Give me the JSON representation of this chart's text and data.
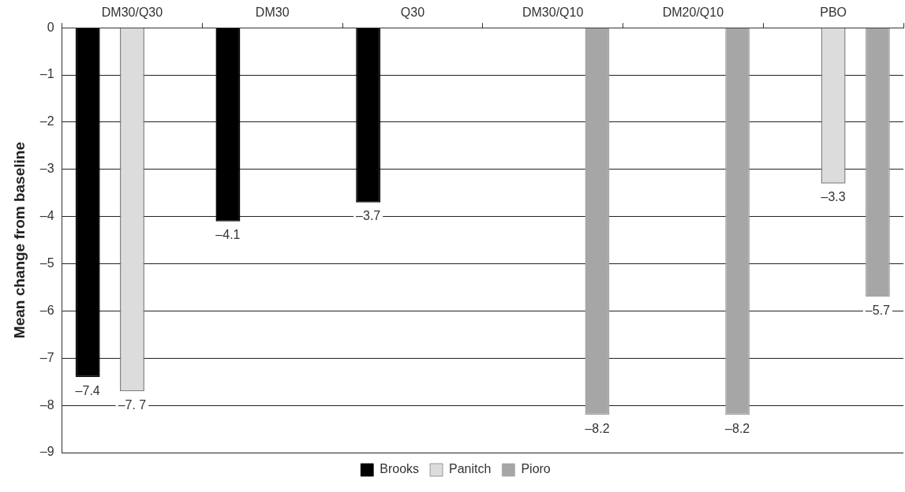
{
  "chart_data": {
    "type": "bar",
    "ylabel": "Mean change from baseline",
    "categories": [
      "DM30/Q30",
      "DM30",
      "Q30",
      "DM30/Q10",
      "DM20/Q10",
      "PBO"
    ],
    "series": [
      {
        "name": "Brooks",
        "color": "#000000",
        "values": [
          -7.4,
          -4.1,
          -3.7,
          null,
          null,
          null
        ],
        "value_labels": [
          "–7.4",
          "–4.1",
          "–3.7",
          null,
          null,
          null
        ]
      },
      {
        "name": "Panitch",
        "color": "#dcdcdc",
        "values": [
          -7.7,
          null,
          null,
          null,
          null,
          -3.3
        ],
        "value_labels": [
          "–7. 7",
          null,
          null,
          null,
          null,
          "–3.3"
        ]
      },
      {
        "name": "Pioro",
        "color": "#a6a6a6",
        "values": [
          null,
          null,
          null,
          -8.2,
          -8.2,
          -5.7
        ],
        "value_labels": [
          null,
          null,
          null,
          "–8.2",
          "–8.2",
          "–5.7"
        ]
      }
    ],
    "ylim": [
      -9,
      0
    ],
    "yticks": [
      {
        "value": 0,
        "label": "0"
      },
      {
        "value": -1,
        "label": "–1"
      },
      {
        "value": -2,
        "label": "–2"
      },
      {
        "value": -3,
        "label": "–3"
      },
      {
        "value": -4,
        "label": "–4"
      },
      {
        "value": -5,
        "label": "–5"
      },
      {
        "value": -6,
        "label": "–6"
      },
      {
        "value": -7,
        "label": "–7"
      },
      {
        "value": -8,
        "label": "–8"
      },
      {
        "value": -9,
        "label": "–9"
      }
    ],
    "grid": "y",
    "legend": "bottom"
  }
}
